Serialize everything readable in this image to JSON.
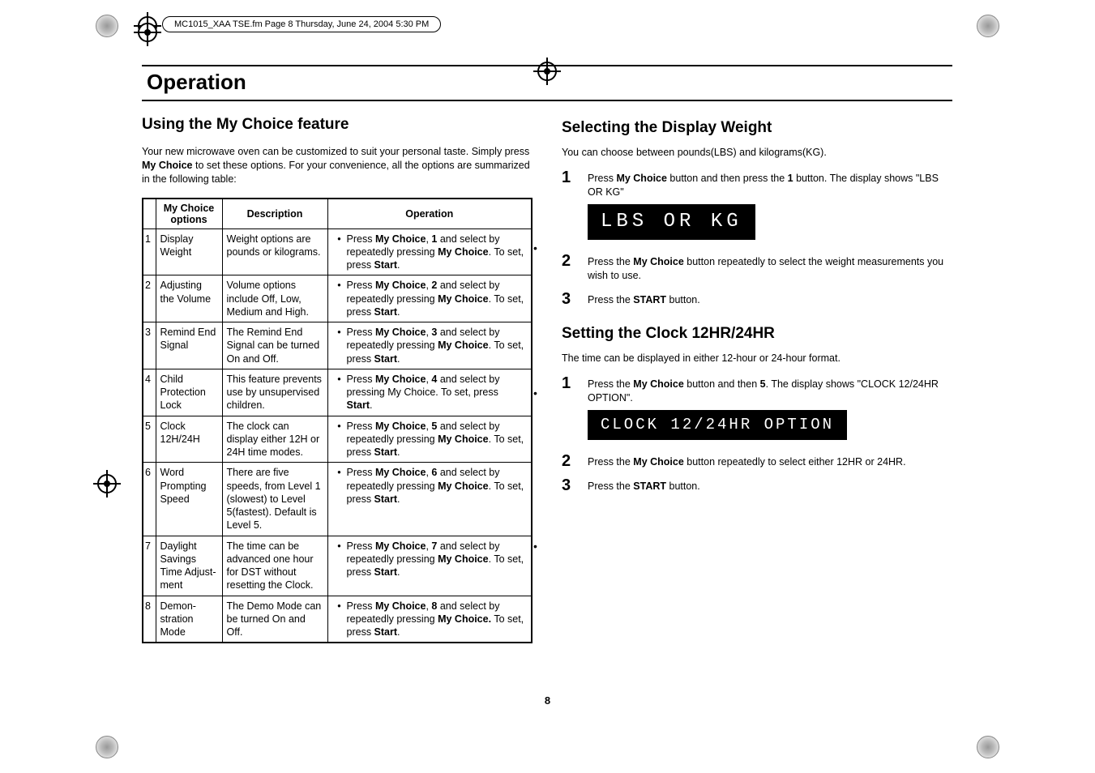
{
  "crop_header": "MC1015_XAA TSE.fm  Page 8  Thursday, June 24, 2004  5:30 PM",
  "page_number": "8",
  "title": "Operation",
  "left": {
    "heading": "Using the My Choice feature",
    "intro_parts": [
      "Your new microwave oven can be customized to suit your personal taste. Simply press ",
      "My Choice",
      " to set these options. For your convenience, all the options are summarized in the following table:"
    ],
    "table": {
      "headers": [
        "",
        "My Choice options",
        "Description",
        "Operation"
      ],
      "rows": [
        {
          "n": "1",
          "option": "Display Weight",
          "desc": "Weight options are pounds or kilograms.",
          "oper": [
            "Press ",
            "My Choice",
            ", ",
            "1",
            " and select by repeatedly pressing ",
            "My Choice",
            ".  To set, press ",
            "Start",
            "."
          ]
        },
        {
          "n": "2",
          "option": "Adjusting the Volume",
          "desc": "Volume options include Off, Low, Medium and High.",
          "oper": [
            "Press ",
            "My Choice",
            ", ",
            "2",
            " and select by repeatedly pressing ",
            "My Choice",
            ". To set, press ",
            "Start",
            "."
          ]
        },
        {
          "n": "3",
          "option": "Remind End Signal",
          "desc": "The Remind End Signal can be turned On and Off.",
          "oper": [
            "Press ",
            "My Choice",
            ", ",
            "3",
            " and select by repeatedly pressing ",
            "My Choice",
            ". To set, press ",
            "Start",
            "."
          ]
        },
        {
          "n": "4",
          "option": "Child Protection Lock",
          "desc": "This feature prevents use by unsupervised children.",
          "oper": [
            "Press ",
            "My Choice",
            ", ",
            "4",
            " and select by pressing My Choice. To set, press ",
            "Start",
            "."
          ]
        },
        {
          "n": "5",
          "option": "Clock 12H/24H",
          "desc": "The clock can display either 12H or 24H time modes.",
          "oper": [
            "Press ",
            "My Choice",
            ", ",
            "5",
            " and select by repeatedly pressing ",
            "My Choice",
            ". To set, press ",
            "Start",
            "."
          ]
        },
        {
          "n": "6",
          "option": "Word Prompting Speed",
          "desc": "There are five speeds, from Level 1 (slowest) to Level 5(fastest). Default is Level 5.",
          "oper": [
            "Press ",
            "My Choice",
            ", ",
            "6",
            " and select by repeatedly pressing ",
            "My Choice",
            ". To set, press ",
            "Start",
            "."
          ]
        },
        {
          "n": "7",
          "option": "Daylight Savings Time Adjust-ment",
          "desc": "The time can be advanced one hour for DST without resetting the Clock.",
          "oper": [
            "Press ",
            "My Choice",
            ", ",
            "7",
            " and select by repeatedly pressing ",
            "My Choice",
            ". To set, press ",
            "Start",
            "."
          ]
        },
        {
          "n": "8",
          "option": "Demon-stration Mode",
          "desc": "The Demo Mode can be turned On and Off.",
          "oper": [
            "Press ",
            "My Choice",
            ", ",
            "8",
            " and select by repeatedly pressing ",
            "My Choice.",
            " To set, press ",
            "Start",
            "."
          ]
        }
      ]
    }
  },
  "right": {
    "section1": {
      "heading": "Selecting the Display Weight",
      "lead": "You can choose between pounds(LBS) and kilograms(KG).",
      "steps": [
        {
          "n": "1",
          "parts": [
            "Press ",
            "My Choice",
            " button and then press the ",
            "1",
            " button. The display shows \"LBS OR KG\""
          ],
          "display": "LBS  OR  KG"
        },
        {
          "n": "2",
          "parts": [
            "Press the ",
            "My Choice",
            " button repeatedly to select the weight measurements you wish to use."
          ]
        },
        {
          "n": "3",
          "parts": [
            "Press the ",
            "START",
            " button."
          ]
        }
      ]
    },
    "section2": {
      "heading": "Setting the Clock 12HR/24HR",
      "lead": "The time can be displayed in either 12-hour or 24-hour format.",
      "steps": [
        {
          "n": "1",
          "parts": [
            "Press the ",
            "My Choice",
            " button and then ",
            "5",
            ". The display shows \"CLOCK 12/24HR OPTION\"."
          ],
          "display": "CLOCK  12/24HR  OPTION"
        },
        {
          "n": "2",
          "parts": [
            "Press the ",
            "My Choice",
            " button repeatedly to select either 12HR or 24HR."
          ]
        },
        {
          "n": "3",
          "parts": [
            "Press the ",
            "START",
            " button."
          ]
        }
      ]
    }
  }
}
